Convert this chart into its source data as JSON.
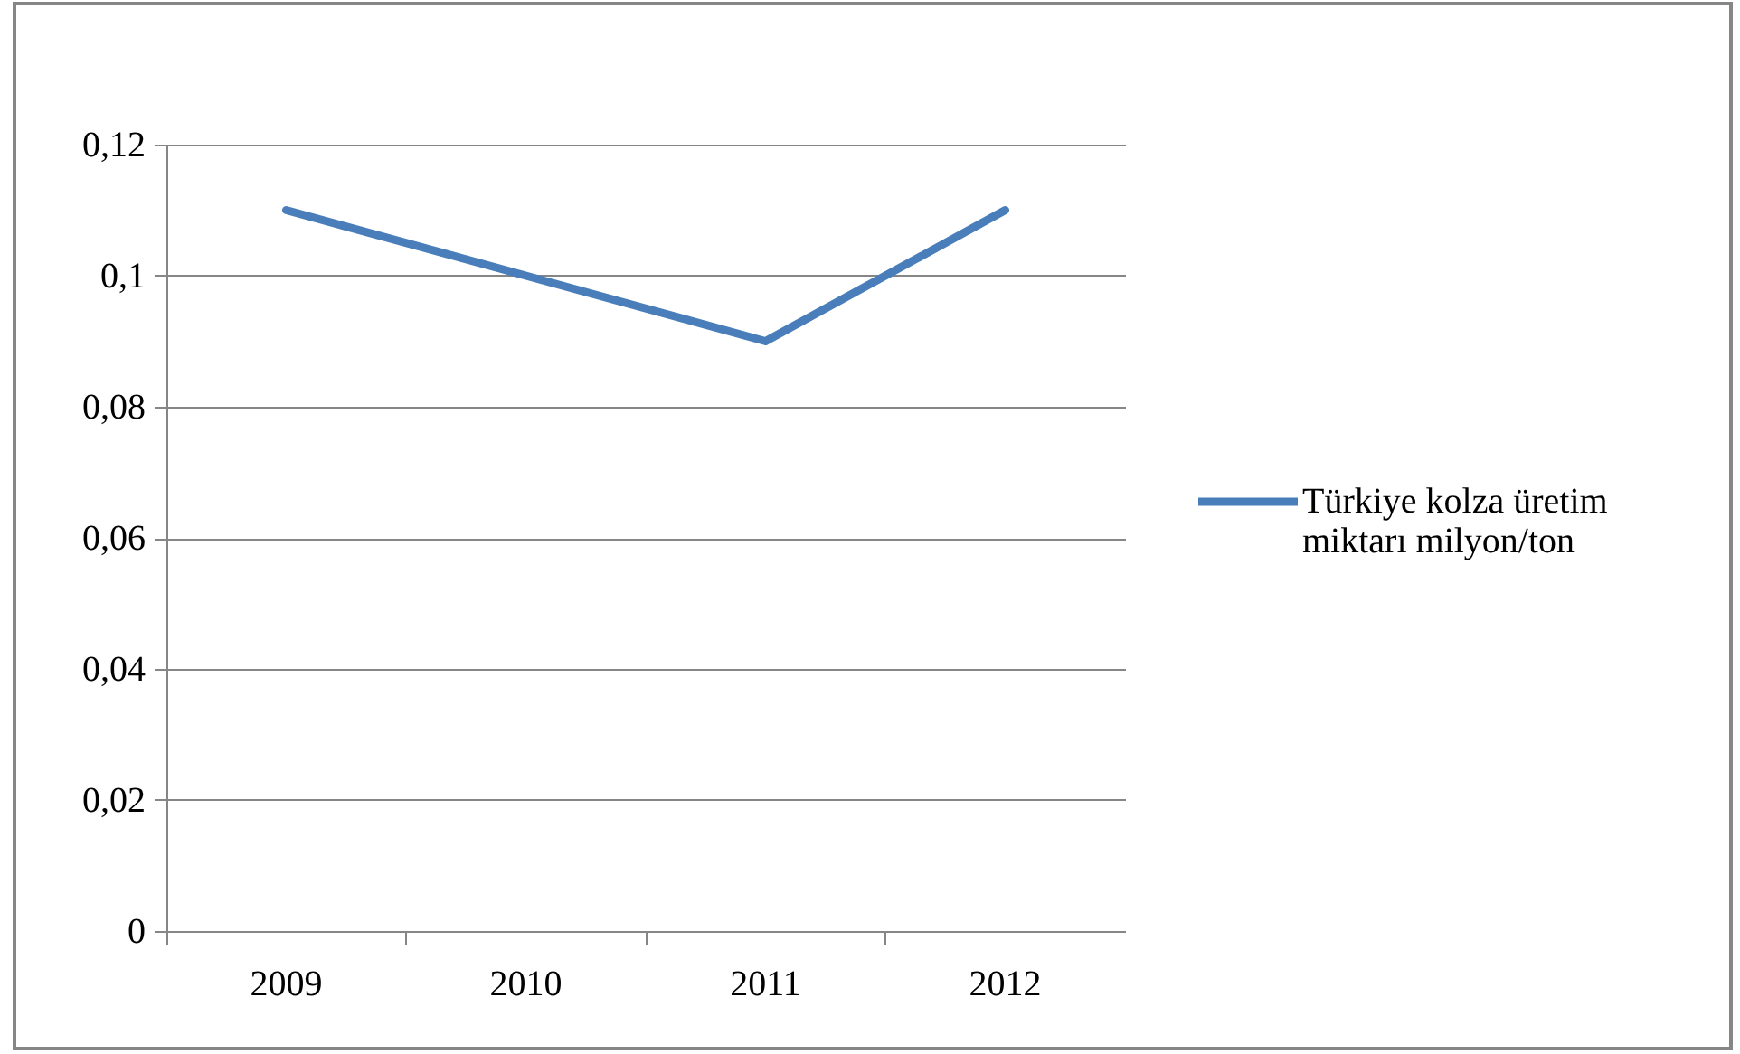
{
  "chart_data": {
    "type": "line",
    "categories": [
      "2009",
      "2010",
      "2011",
      "2012"
    ],
    "series": [
      {
        "name": "Türkiye kolza üretim miktarı milyon/ton",
        "color": "#4a7ebb",
        "values": [
          0.11,
          0.1,
          0.09,
          0.11
        ]
      }
    ],
    "ylim": [
      0,
      0.12
    ],
    "yticks": [
      0,
      {
        "value": 0.02,
        "label": "0,02"
      },
      {
        "value": 0.04,
        "label": "0,04"
      },
      {
        "value": 0.06,
        "label": "0,06"
      },
      {
        "value": 0.08,
        "label": "0,08"
      },
      {
        "value": 0.1,
        "label": "0,1"
      },
      {
        "value": 0.12,
        "label": "0,12"
      }
    ],
    "grid": "y",
    "legend": "right",
    "marker": "none",
    "line_style": "solid"
  }
}
